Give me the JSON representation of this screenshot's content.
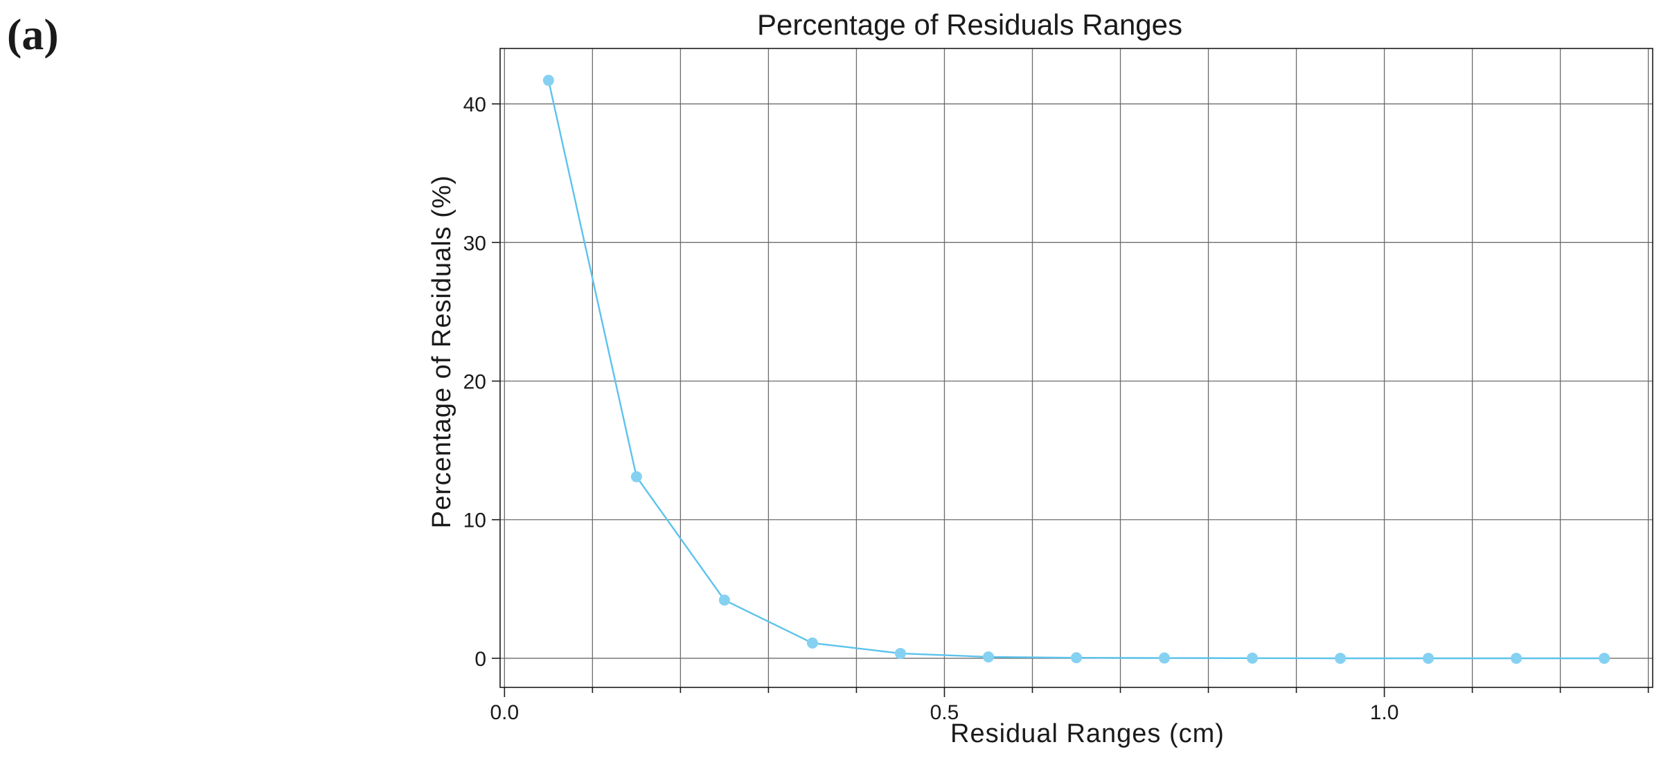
{
  "panel_label": "(a)",
  "chart_data": {
    "type": "line",
    "title": "Percentage of Residuals Ranges",
    "xlabel": "Residual Ranges (cm)",
    "ylabel": "Percentage of Residuals (%)",
    "xlim": [
      -0.005,
      1.305
    ],
    "ylim": [
      -2.1,
      44.0
    ],
    "grid": true,
    "x_major_ticks": [
      0.0,
      0.5,
      1.0
    ],
    "x_major_tick_labels": [
      "0.0",
      "0.5",
      "1.0"
    ],
    "x_minor_ticks": [
      0.1,
      0.2,
      0.3,
      0.4,
      0.6,
      0.7,
      0.8,
      0.9,
      1.1,
      1.2,
      1.3
    ],
    "y_ticks": [
      0,
      10,
      20,
      30,
      40
    ],
    "y_tick_labels": [
      "0",
      "10",
      "20",
      "30",
      "40"
    ],
    "line_color": "#5bc3ec",
    "marker_color": "#85d1f2",
    "series": [
      {
        "x": [
          0.05,
          0.15,
          0.25,
          0.35,
          0.45,
          0.55,
          0.65,
          0.75,
          0.85,
          0.95,
          1.05,
          1.15,
          1.25
        ],
        "y": [
          41.7,
          13.1,
          4.2,
          1.1,
          0.35,
          0.1,
          0.04,
          0.02,
          0.01,
          0.0,
          0.0,
          0.0,
          0.0
        ]
      }
    ]
  }
}
